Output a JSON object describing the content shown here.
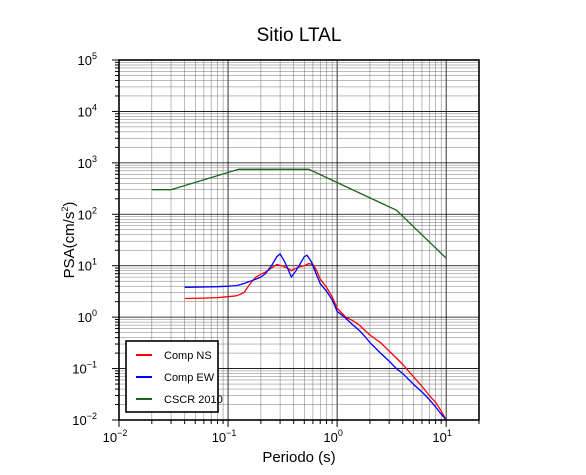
{
  "chart_data": {
    "type": "line",
    "title": "Sitio LTAL",
    "xlabel": "Periodo (s)",
    "ylabel": {
      "base": "PSA(cm/s",
      "sup": "2",
      "tail": ")"
    },
    "x_scale": "log",
    "y_scale": "log",
    "xlim": [
      0.01,
      20
    ],
    "ylim": [
      0.01,
      100000
    ],
    "grid": true,
    "legend_position": "bottom-left",
    "x_ticks": [
      {
        "base": "10",
        "exp": "−2",
        "value": 0.01
      },
      {
        "base": "10",
        "exp": "−1",
        "value": 0.1
      },
      {
        "base": "10",
        "exp": "0",
        "value": 1
      },
      {
        "base": "10",
        "exp": "1",
        "value": 10
      }
    ],
    "y_ticks": [
      {
        "base": "10",
        "exp": "−2",
        "value": 0.01
      },
      {
        "base": "10",
        "exp": "−1",
        "value": 0.1
      },
      {
        "base": "10",
        "exp": "0",
        "value": 1
      },
      {
        "base": "10",
        "exp": "1",
        "value": 10
      },
      {
        "base": "10",
        "exp": "2",
        "value": 100
      },
      {
        "base": "10",
        "exp": "3",
        "value": 1000
      },
      {
        "base": "10",
        "exp": "4",
        "value": 10000
      },
      {
        "base": "10",
        "exp": "5",
        "value": 100000
      }
    ],
    "series": [
      {
        "name": "Comp NS",
        "color": "#ff0000",
        "points": [
          [
            0.04,
            2.3
          ],
          [
            0.06,
            2.35
          ],
          [
            0.08,
            2.4
          ],
          [
            0.1,
            2.5
          ],
          [
            0.12,
            2.6
          ],
          [
            0.14,
            3.0
          ],
          [
            0.16,
            4.5
          ],
          [
            0.18,
            6.0
          ],
          [
            0.2,
            6.8
          ],
          [
            0.22,
            7.5
          ],
          [
            0.25,
            9.0
          ],
          [
            0.28,
            10.5
          ],
          [
            0.31,
            10.0
          ],
          [
            0.35,
            9.0
          ],
          [
            0.38,
            8.0
          ],
          [
            0.4,
            8.5
          ],
          [
            0.45,
            9.5
          ],
          [
            0.5,
            10.0
          ],
          [
            0.55,
            11.0
          ],
          [
            0.6,
            10.5
          ],
          [
            0.65,
            8.0
          ],
          [
            0.7,
            5.5
          ],
          [
            0.8,
            3.8
          ],
          [
            0.9,
            2.5
          ],
          [
            1.0,
            1.5
          ],
          [
            1.2,
            1.0
          ],
          [
            1.4,
            0.85
          ],
          [
            1.6,
            0.7
          ],
          [
            1.8,
            0.55
          ],
          [
            2.0,
            0.45
          ],
          [
            2.5,
            0.32
          ],
          [
            3.0,
            0.22
          ],
          [
            3.5,
            0.16
          ],
          [
            4.0,
            0.12
          ],
          [
            5.0,
            0.07
          ],
          [
            6.0,
            0.045
          ],
          [
            7.0,
            0.03
          ],
          [
            8.0,
            0.022
          ],
          [
            9.0,
            0.015
          ],
          [
            10.0,
            0.01
          ]
        ]
      },
      {
        "name": "Comp EW",
        "color": "#0000ff",
        "points": [
          [
            0.04,
            3.8
          ],
          [
            0.06,
            3.85
          ],
          [
            0.08,
            3.9
          ],
          [
            0.1,
            4.0
          ],
          [
            0.12,
            4.1
          ],
          [
            0.14,
            4.5
          ],
          [
            0.16,
            5.0
          ],
          [
            0.18,
            5.5
          ],
          [
            0.2,
            6.0
          ],
          [
            0.22,
            7.0
          ],
          [
            0.25,
            10.0
          ],
          [
            0.28,
            15.0
          ],
          [
            0.3,
            17.0
          ],
          [
            0.33,
            12.0
          ],
          [
            0.36,
            8.0
          ],
          [
            0.38,
            6.0
          ],
          [
            0.42,
            8.0
          ],
          [
            0.46,
            11.0
          ],
          [
            0.5,
            15.0
          ],
          [
            0.53,
            16.0
          ],
          [
            0.58,
            12.0
          ],
          [
            0.65,
            6.5
          ],
          [
            0.7,
            4.5
          ],
          [
            0.8,
            3.2
          ],
          [
            0.9,
            2.2
          ],
          [
            1.0,
            1.3
          ],
          [
            1.2,
            0.95
          ],
          [
            1.4,
            0.7
          ],
          [
            1.6,
            0.55
          ],
          [
            1.8,
            0.42
          ],
          [
            2.0,
            0.32
          ],
          [
            2.5,
            0.2
          ],
          [
            3.0,
            0.14
          ],
          [
            3.5,
            0.1
          ],
          [
            4.0,
            0.08
          ],
          [
            5.0,
            0.05
          ],
          [
            6.0,
            0.035
          ],
          [
            7.0,
            0.025
          ],
          [
            8.0,
            0.018
          ],
          [
            9.0,
            0.013
          ],
          [
            10.0,
            0.01
          ]
        ]
      },
      {
        "name": "CSCR 2010",
        "color": "#1a661a",
        "points": [
          [
            0.02,
            300
          ],
          [
            0.03,
            300
          ],
          [
            0.125,
            750
          ],
          [
            0.55,
            750
          ],
          [
            3.5,
            120
          ],
          [
            10.0,
            14
          ]
        ]
      }
    ]
  }
}
